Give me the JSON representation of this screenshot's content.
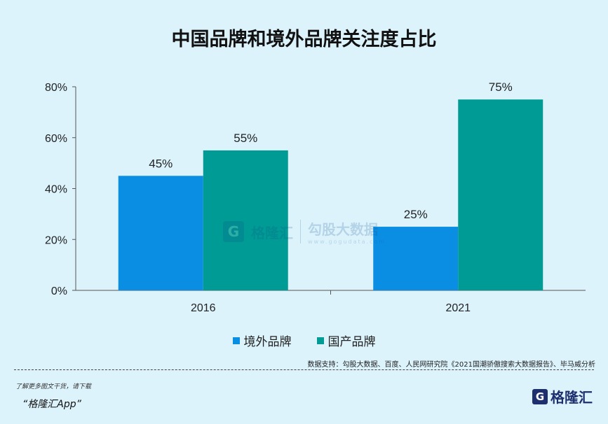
{
  "chart_data": {
    "type": "bar",
    "title": "中国品牌和境外品牌关注度占比",
    "categories": [
      "2016",
      "2021"
    ],
    "series": [
      {
        "name": "境外品牌",
        "color": "#0a8ee3",
        "values": [
          45,
          25
        ]
      },
      {
        "name": "国产品牌",
        "color": "#009b94",
        "values": [
          55,
          75
        ]
      }
    ],
    "data_labels": [
      [
        "45%",
        "25%"
      ],
      [
        "55%",
        "75%"
      ]
    ],
    "ylim": [
      0,
      80
    ],
    "yticks": [
      "0%",
      "20%",
      "40%",
      "60%",
      "80%"
    ],
    "ytick_values": [
      0,
      20,
      40,
      60,
      80
    ],
    "grid": false,
    "legend_position": "bottom"
  },
  "source": "数据支持：勾股大数据、百度、人民网研究院《2021国潮骄傲搜索大数据报告》、毕马威分析",
  "footer": {
    "promo": "了解更多图文干货，请下载",
    "app": "“格隆汇App”",
    "logo_mark": "G",
    "logo_text": "格隆汇"
  },
  "watermark": {
    "mark": "G",
    "left_text": "格隆汇",
    "right_text": "勾股大数据",
    "url": "www.gogudata.com"
  }
}
